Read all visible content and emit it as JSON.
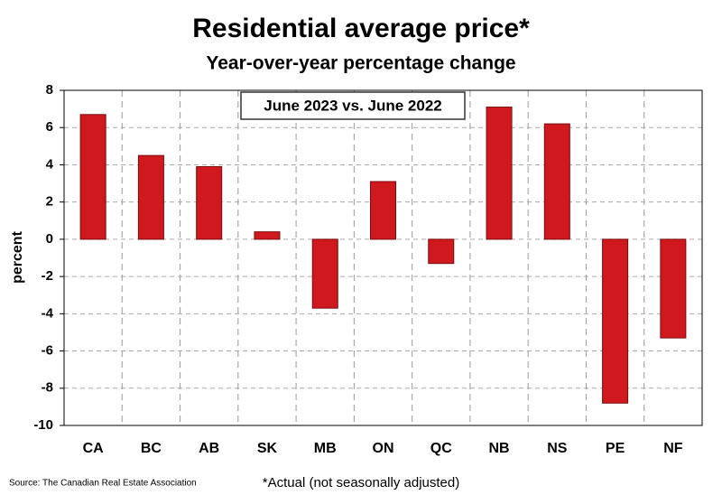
{
  "chart_data": {
    "type": "bar",
    "title": "Residential average price*",
    "subtitle": "Year-over-year percentage change",
    "annotation": "June 2023 vs. June 2022",
    "y_label": "percent",
    "source": "Source: The Canadian Real Estate Association",
    "footnote": "*Actual (not seasonally adjusted)",
    "categories": [
      "CA",
      "BC",
      "AB",
      "SK",
      "MB",
      "ON",
      "QC",
      "NB",
      "NS",
      "PE",
      "NF"
    ],
    "values": [
      6.7,
      4.5,
      3.9,
      0.4,
      -3.7,
      3.1,
      -1.3,
      7.1,
      6.2,
      -8.8,
      -5.3
    ],
    "color": "#d0191f",
    "ylim": [
      -10,
      8
    ],
    "yticks": [
      -10,
      -8,
      -6,
      -4,
      -2,
      0,
      2,
      4,
      6,
      8
    ],
    "grid": true
  }
}
